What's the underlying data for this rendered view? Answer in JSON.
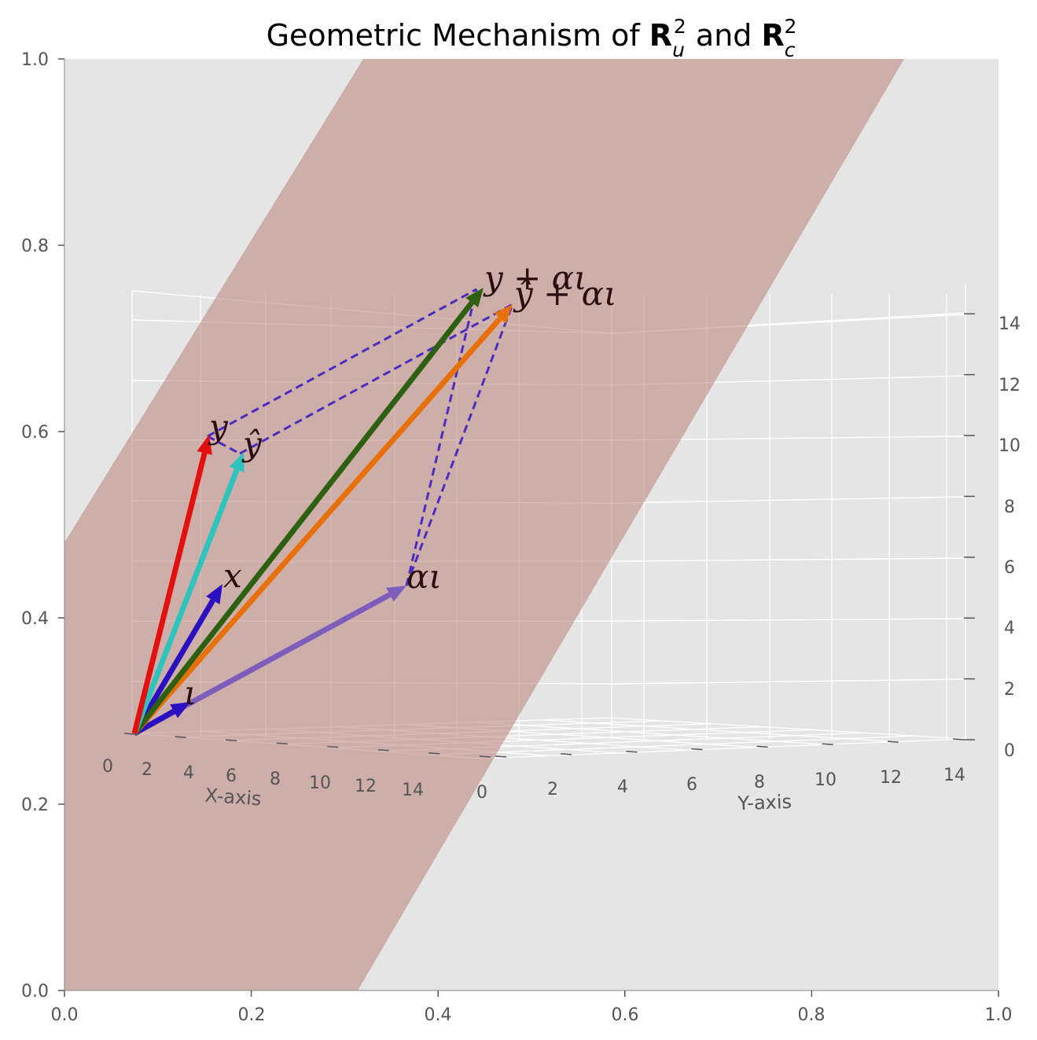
{
  "chart_data": {
    "type": "3d-vector-plot",
    "title": {
      "prefix": "Geometric Mechanism of ",
      "and": " and ",
      "R_symbol": "R",
      "sup": "2",
      "sub_u": "u",
      "sub_c": "c"
    },
    "outer_axes": {
      "xlim": [
        0.0,
        1.0
      ],
      "ylim": [
        0.0,
        1.0
      ],
      "xticks": [
        "0.0",
        "0.2",
        "0.4",
        "0.6",
        "0.8",
        "1.0"
      ],
      "yticks": [
        "0.0",
        "0.2",
        "0.4",
        "0.6",
        "0.8",
        "1.0"
      ]
    },
    "axes3d": {
      "xlabel": "X-axis",
      "ylabel": "Y-axis",
      "xticks": [
        "0",
        "2",
        "4",
        "6",
        "8",
        "10",
        "12",
        "14"
      ],
      "yticks": [
        "0",
        "2",
        "4",
        "6",
        "8",
        "10",
        "12",
        "14"
      ],
      "zticks": [
        "0",
        "2",
        "4",
        "6",
        "8",
        "10",
        "12",
        "14"
      ],
      "grid": true
    },
    "plane": {
      "color": "#bc8278",
      "opacity": 0.55
    },
    "vectors": [
      {
        "id": "iota",
        "label": "ι",
        "color": "#2a10c0",
        "opacity": 1.0
      },
      {
        "id": "x",
        "label": "x",
        "color": "#2a10c0",
        "opacity": 1.0
      },
      {
        "id": "y",
        "label": "y",
        "color": "#e31010",
        "opacity": 1.0
      },
      {
        "id": "yhat",
        "label": "ŷ",
        "color": "#2ec4be",
        "opacity": 1.0
      },
      {
        "id": "alpha",
        "label": "αι",
        "color": "#7050c0",
        "opacity": 0.85
      },
      {
        "id": "ysum",
        "label": "y + αι",
        "color": "#2d6010",
        "opacity": 1.0
      },
      {
        "id": "yhsum",
        "label": "ŷ + αι",
        "color": "#e8700a",
        "opacity": 1.0
      }
    ],
    "dashed_color": "#4a2cc0"
  }
}
